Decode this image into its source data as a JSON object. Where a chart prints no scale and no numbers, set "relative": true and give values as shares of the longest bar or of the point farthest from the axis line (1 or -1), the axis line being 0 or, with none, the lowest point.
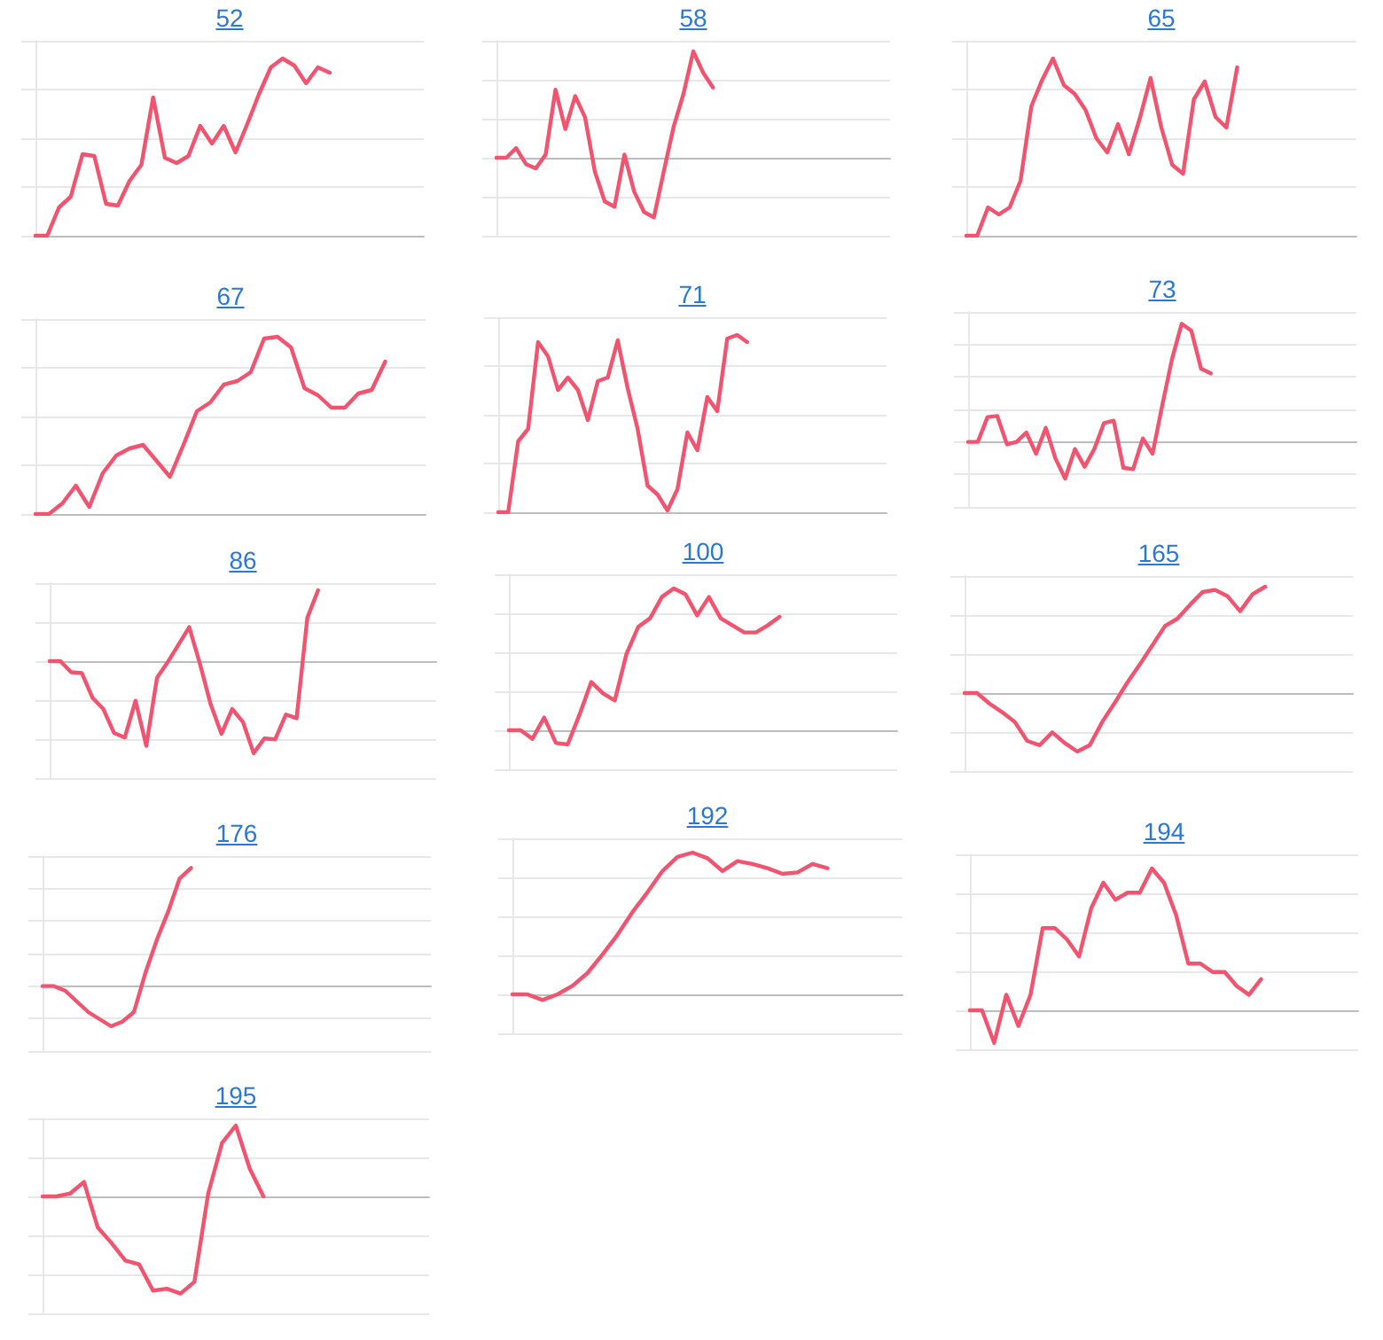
{
  "chart_data": [
    {
      "type": "line",
      "title": "52",
      "categories": [
        null,
        null,
        null,
        null,
        null,
        null,
        null,
        null,
        null,
        null,
        null,
        null,
        null,
        null,
        null,
        null,
        null,
        null,
        null,
        null,
        null,
        null,
        null,
        null,
        null,
        null,
        null,
        null,
        null,
        null,
        null,
        null,
        null,
        null
      ],
      "values": [
        0,
        0,
        0.16,
        0.22,
        0.46,
        0.45,
        0.18,
        0.17,
        0.31,
        0.4,
        0.78,
        0.44,
        0.41,
        0.45,
        0.62,
        0.52,
        0.62,
        0.47,
        0.63,
        0.8,
        0.95,
        1,
        0.96,
        0.86,
        0.95,
        0.92,
        null,
        null,
        null,
        null,
        null,
        null,
        null,
        null
      ],
      "color": "#f25470",
      "relative": true,
      "grid": "y",
      "marker": "none",
      "tick_labels": false
    },
    {
      "type": "line",
      "title": "58",
      "categories": [
        null,
        null,
        null,
        null,
        null,
        null,
        null,
        null,
        null,
        null,
        null,
        null,
        null,
        null,
        null,
        null,
        null,
        null,
        null,
        null,
        null,
        null,
        null,
        null,
        null,
        null,
        null,
        null,
        null,
        null,
        null,
        null,
        null,
        null,
        null,
        null,
        null,
        null,
        null,
        null,
        null
      ],
      "values": [
        0,
        0,
        0.09,
        -0.06,
        -0.1,
        0.03,
        0.64,
        0.27,
        0.58,
        0.38,
        -0.13,
        -0.41,
        -0.46,
        0.03,
        -0.32,
        -0.51,
        -0.56,
        -0.13,
        0.29,
        0.6,
        1,
        0.8,
        0.66,
        null,
        null,
        null,
        null,
        null,
        null,
        null,
        null,
        null,
        null,
        null,
        null,
        null,
        null,
        null,
        null,
        null,
        null
      ],
      "color": "#f25470",
      "relative": true,
      "grid": "y",
      "marker": "none",
      "tick_labels": false
    },
    {
      "type": "line",
      "title": "65",
      "categories": [
        null,
        null,
        null,
        null,
        null,
        null,
        null,
        null,
        null,
        null,
        null,
        null,
        null,
        null,
        null,
        null,
        null,
        null,
        null,
        null,
        null,
        null,
        null,
        null,
        null,
        null,
        null,
        null,
        null,
        null,
        null,
        null,
        null,
        null,
        null,
        null,
        null
      ],
      "values": [
        0,
        0,
        0.16,
        0.12,
        0.16,
        0.31,
        0.73,
        0.88,
        1,
        0.85,
        0.8,
        0.71,
        0.55,
        0.47,
        0.63,
        0.46,
        0.66,
        0.89,
        0.61,
        0.4,
        0.35,
        0.77,
        0.87,
        0.67,
        0.61,
        0.95,
        null,
        null,
        null,
        null,
        null,
        null,
        null,
        null,
        null,
        null,
        null
      ],
      "color": "#f25470",
      "relative": true,
      "grid": "y",
      "marker": "none",
      "tick_labels": false
    },
    {
      "type": "line",
      "title": "67",
      "categories": [
        null,
        null,
        null,
        null,
        null,
        null,
        null,
        null,
        null,
        null,
        null,
        null,
        null,
        null,
        null,
        null,
        null,
        null,
        null,
        null,
        null,
        null,
        null,
        null,
        null,
        null,
        null,
        null,
        null,
        null
      ],
      "values": [
        0,
        0,
        0.06,
        0.16,
        0.04,
        0.23,
        0.33,
        0.37,
        0.39,
        0.3,
        0.21,
        0.39,
        0.58,
        0.63,
        0.73,
        0.75,
        0.8,
        0.99,
        1,
        0.94,
        0.71,
        0.67,
        0.6,
        0.6,
        0.68,
        0.7,
        0.86,
        null,
        null,
        null
      ],
      "color": "#f25470",
      "relative": true,
      "grid": "y",
      "marker": "none",
      "tick_labels": false
    },
    {
      "type": "line",
      "title": "71",
      "categories": [
        null,
        null,
        null,
        null,
        null,
        null,
        null,
        null,
        null,
        null,
        null,
        null,
        null,
        null,
        null,
        null,
        null,
        null,
        null,
        null,
        null,
        null,
        null,
        null,
        null,
        null,
        null,
        null,
        null,
        null,
        null,
        null,
        null,
        null,
        null,
        null,
        null,
        null,
        null,
        null
      ],
      "values": [
        0,
        0,
        0.4,
        0.47,
        0.96,
        0.88,
        0.69,
        0.76,
        0.69,
        0.52,
        0.74,
        0.76,
        0.97,
        0.7,
        0.47,
        0.15,
        0.1,
        0.01,
        0.13,
        0.45,
        0.35,
        0.65,
        0.57,
        0.98,
        1,
        0.96,
        null,
        null,
        null,
        null,
        null,
        null,
        null,
        null,
        null,
        null,
        null,
        null,
        null,
        null
      ],
      "color": "#f25470",
      "relative": true,
      "grid": "y",
      "marker": "none",
      "tick_labels": false
    },
    {
      "type": "line",
      "title": "73",
      "categories": [
        null,
        null,
        null,
        null,
        null,
        null,
        null,
        null,
        null,
        null,
        null,
        null,
        null,
        null,
        null,
        null,
        null,
        null,
        null,
        null,
        null,
        null,
        null,
        null,
        null,
        null,
        null,
        null,
        null,
        null,
        null,
        null,
        null,
        null,
        null,
        null,
        null,
        null,
        null,
        null,
        null
      ],
      "values": [
        0,
        0,
        0.21,
        0.22,
        -0.02,
        0,
        0.08,
        -0.1,
        0.12,
        -0.14,
        -0.31,
        -0.06,
        -0.21,
        -0.06,
        0.16,
        0.18,
        -0.22,
        -0.23,
        0.03,
        -0.1,
        0.31,
        0.7,
        1,
        0.94,
        0.62,
        0.58,
        null,
        null,
        null,
        null,
        null,
        null,
        null,
        null,
        null,
        null,
        null,
        null,
        null,
        null,
        null
      ],
      "color": "#f25470",
      "relative": true,
      "grid": "y",
      "marker": "none",
      "tick_labels": false
    },
    {
      "type": "line",
      "title": "86",
      "categories": [
        null,
        null,
        null,
        null,
        null,
        null,
        null,
        null,
        null,
        null,
        null,
        null,
        null,
        null,
        null,
        null,
        null,
        null,
        null,
        null,
        null,
        null,
        null,
        null,
        null,
        null,
        null,
        null,
        null,
        null,
        null,
        null,
        null,
        null,
        null,
        null,
        null
      ],
      "values": [
        0,
        0,
        -0.12,
        -0.13,
        -0.4,
        -0.52,
        -0.78,
        -0.83,
        -0.43,
        -0.92,
        -0.18,
        -0.01,
        0.18,
        0.37,
        -0.03,
        -0.47,
        -0.79,
        -0.52,
        -0.66,
        -1,
        -0.84,
        -0.85,
        -0.58,
        -0.62,
        0.47,
        0.77,
        null,
        null,
        null,
        null,
        null,
        null,
        null,
        null,
        null,
        null,
        null
      ],
      "color": "#f25470",
      "relative": true,
      "grid": "y",
      "marker": "none",
      "tick_labels": false
    },
    {
      "type": "line",
      "title": "100",
      "categories": [
        null,
        null,
        null,
        null,
        null,
        null,
        null,
        null,
        null,
        null,
        null,
        null,
        null,
        null,
        null,
        null,
        null,
        null,
        null,
        null,
        null,
        null,
        null,
        null,
        null,
        null,
        null,
        null,
        null,
        null,
        null,
        null,
        null,
        null
      ],
      "values": [
        0,
        0,
        -0.06,
        0.09,
        -0.09,
        -0.1,
        0.11,
        0.34,
        0.26,
        0.21,
        0.54,
        0.73,
        0.79,
        0.94,
        1,
        0.96,
        0.81,
        0.94,
        0.79,
        0.74,
        0.69,
        0.69,
        0.74,
        0.8,
        null,
        null,
        null,
        null,
        null,
        null,
        null,
        null,
        null,
        null
      ],
      "color": "#f25470",
      "relative": true,
      "grid": "y",
      "marker": "none",
      "tick_labels": false
    },
    {
      "type": "line",
      "title": "165",
      "categories": [
        null,
        null,
        null,
        null,
        null,
        null,
        null,
        null,
        null,
        null,
        null,
        null,
        null,
        null,
        null,
        null,
        null,
        null,
        null,
        null,
        null,
        null,
        null,
        null,
        null,
        null,
        null,
        null,
        null,
        null,
        null,
        null
      ],
      "values": [
        0,
        0,
        -0.1,
        -0.18,
        -0.27,
        -0.45,
        -0.49,
        -0.37,
        -0.47,
        -0.55,
        -0.49,
        -0.27,
        -0.09,
        0.1,
        0.27,
        0.45,
        0.63,
        0.7,
        0.83,
        0.95,
        0.97,
        0.91,
        0.77,
        0.93,
        1,
        null,
        null,
        null,
        null,
        null,
        null,
        null
      ],
      "color": "#f25470",
      "relative": true,
      "grid": "y",
      "marker": "none",
      "tick_labels": false
    },
    {
      "type": "line",
      "title": "176",
      "categories": [
        null,
        null,
        null,
        null,
        null,
        null,
        null,
        null,
        null,
        null,
        null,
        null,
        null,
        null,
        null,
        null,
        null,
        null,
        null,
        null,
        null,
        null,
        null,
        null,
        null,
        null,
        null,
        null,
        null,
        null,
        null,
        null,
        null,
        null,
        null
      ],
      "values": [
        0,
        0,
        -0.04,
        -0.13,
        -0.22,
        -0.28,
        -0.34,
        -0.3,
        -0.22,
        0.11,
        0.39,
        0.63,
        0.91,
        1,
        null,
        null,
        null,
        null,
        null,
        null,
        null,
        null,
        null,
        null,
        null,
        null,
        null,
        null,
        null,
        null,
        null,
        null,
        null,
        null,
        null
      ],
      "color": "#f25470",
      "relative": true,
      "grid": "y",
      "marker": "none",
      "tick_labels": false
    },
    {
      "type": "line",
      "title": "192",
      "categories": [
        null,
        null,
        null,
        null,
        null,
        null,
        null,
        null,
        null,
        null,
        null,
        null,
        null,
        null,
        null,
        null,
        null,
        null,
        null,
        null,
        null,
        null,
        null,
        null,
        null,
        null,
        null
      ],
      "values": [
        0,
        0,
        -0.04,
        0,
        0.06,
        0.15,
        0.28,
        0.42,
        0.58,
        0.72,
        0.87,
        0.97,
        1,
        0.96,
        0.87,
        0.94,
        0.92,
        0.89,
        0.85,
        0.86,
        0.92,
        0.89,
        null,
        null,
        null,
        null,
        null
      ],
      "color": "#f25470",
      "relative": true,
      "grid": "y",
      "marker": "none",
      "tick_labels": false
    },
    {
      "type": "line",
      "title": "194",
      "categories": [
        null,
        null,
        null,
        null,
        null,
        null,
        null,
        null,
        null,
        null,
        null,
        null,
        null,
        null,
        null,
        null,
        null,
        null,
        null,
        null,
        null,
        null,
        null,
        null,
        null,
        null,
        null,
        null,
        null,
        null,
        null,
        null,
        null
      ],
      "values": [
        0,
        0,
        -0.23,
        0.11,
        -0.11,
        0.11,
        0.58,
        0.58,
        0.5,
        0.38,
        0.72,
        0.9,
        0.78,
        0.83,
        0.83,
        1,
        0.9,
        0.67,
        0.33,
        0.33,
        0.27,
        0.27,
        0.17,
        0.11,
        0.22,
        null,
        null,
        null,
        null,
        null,
        null,
        null,
        null
      ],
      "color": "#f25470",
      "relative": true,
      "grid": "y",
      "marker": "none",
      "tick_labels": false
    },
    {
      "type": "line",
      "title": "195",
      "categories": [
        null,
        null,
        null,
        null,
        null,
        null,
        null,
        null,
        null,
        null,
        null,
        null,
        null,
        null,
        null,
        null,
        null,
        null,
        null,
        null,
        null,
        null,
        null,
        null,
        null,
        null,
        null,
        null,
        null
      ],
      "values": [
        0,
        0,
        0.03,
        0.15,
        -0.32,
        -0.48,
        -0.66,
        -0.7,
        -0.97,
        -0.95,
        -1,
        -0.88,
        0.03,
        0.55,
        0.73,
        0.29,
        0,
        null,
        null,
        null,
        null,
        null,
        null,
        null,
        null,
        null,
        null,
        null,
        null
      ],
      "color": "#f25470",
      "relative": true,
      "grid": "y",
      "marker": "none",
      "tick_labels": false
    }
  ]
}
